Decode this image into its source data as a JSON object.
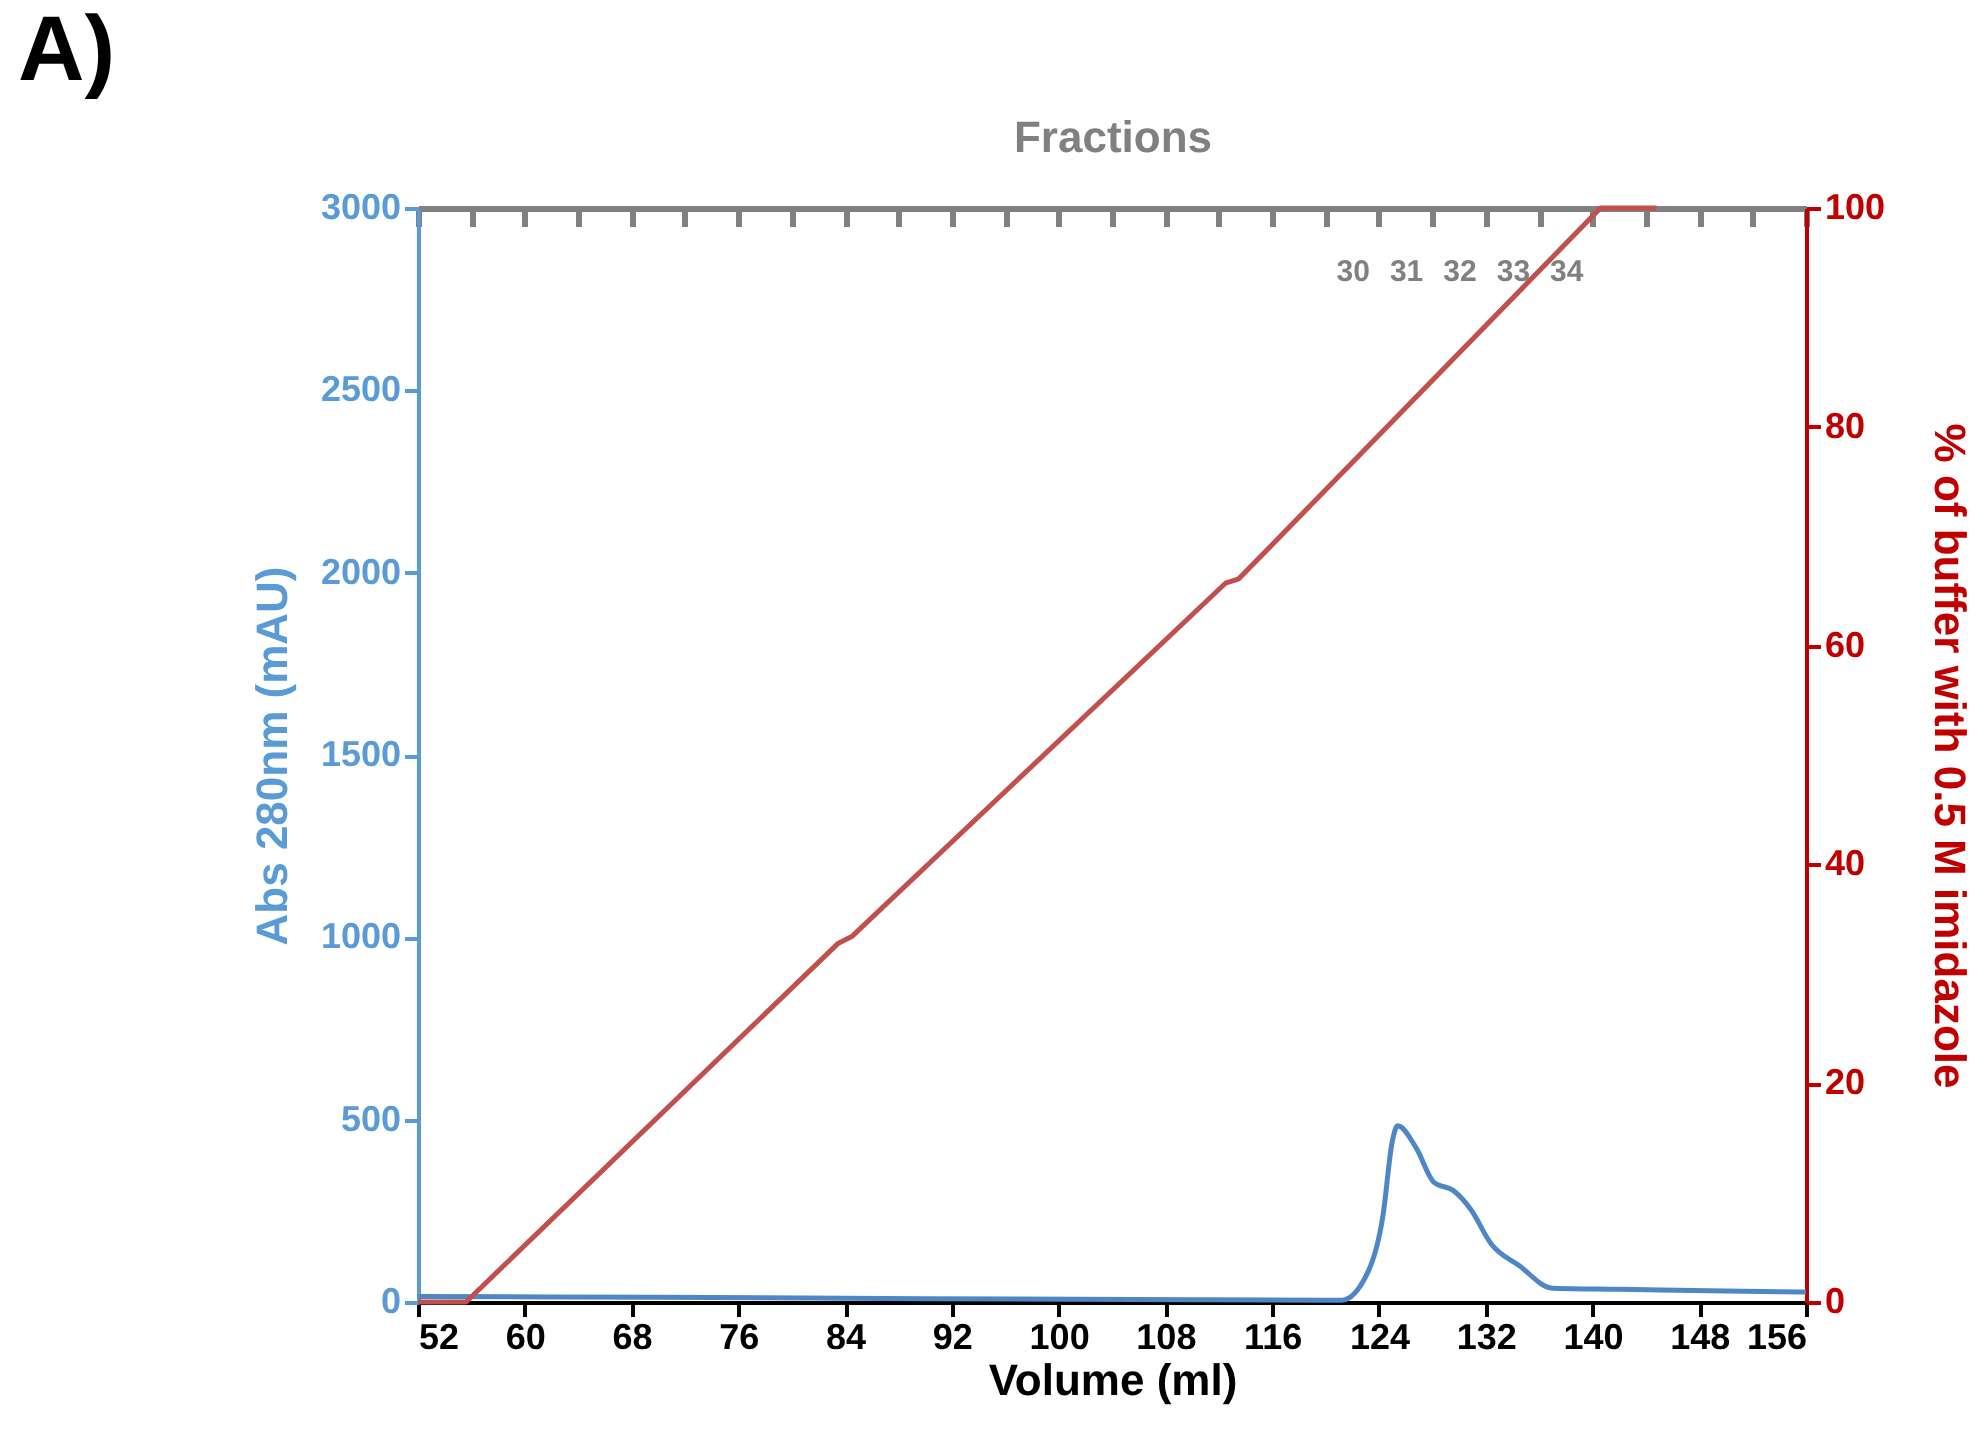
{
  "chart_data": {
    "type": "line",
    "annotations": [
      "A)"
    ],
    "xlabel": "Volume (ml)",
    "ylabel": "Abs 280nm (mAU)",
    "y2label": "% of buffer with 0.5 M imidazole",
    "x2label": "Fractions",
    "xlim": [
      52,
      156
    ],
    "xticks": [
      52,
      60,
      68,
      76,
      84,
      92,
      100,
      108,
      116,
      124,
      132,
      140,
      148,
      156
    ],
    "x2lim": [
      12.5,
      38.5
    ],
    "x2ticks": [
      {
        "value": 12.5,
        "label": null
      },
      {
        "value": 13.5,
        "label": null
      },
      {
        "value": 14.5,
        "label": null
      },
      {
        "value": 15.5,
        "label": null
      },
      {
        "value": 16.5,
        "label": null
      },
      {
        "value": 17.5,
        "label": null
      },
      {
        "value": 18.5,
        "label": null
      },
      {
        "value": 19.5,
        "label": null
      },
      {
        "value": 20.5,
        "label": null
      },
      {
        "value": 21.5,
        "label": null
      },
      {
        "value": 22.5,
        "label": null
      },
      {
        "value": 23.5,
        "label": null
      },
      {
        "value": 24.5,
        "label": null
      },
      {
        "value": 25.5,
        "label": null
      },
      {
        "value": 26.5,
        "label": null
      },
      {
        "value": 27.5,
        "label": null
      },
      {
        "value": 28.5,
        "label": null
      },
      {
        "value": 29.5,
        "label": null
      },
      {
        "value": 30.5,
        "label": null
      },
      {
        "value": 31.5,
        "label": null
      },
      {
        "value": 32.5,
        "label": null
      },
      {
        "value": 33.5,
        "label": null
      },
      {
        "value": 34.5,
        "label": null
      },
      {
        "value": 35.5,
        "label": null
      },
      {
        "value": 36.5,
        "label": null
      },
      {
        "value": 37.5,
        "label": null
      },
      {
        "value": 38.5,
        "label": null
      },
      30,
      31,
      32,
      33,
      34
    ],
    "ylim": [
      0,
      3000
    ],
    "yticks": [
      0,
      500,
      1000,
      1500,
      2000,
      2500,
      3000
    ],
    "y2lim": [
      0,
      100
    ],
    "y2ticks": [
      0,
      20,
      40,
      60,
      80,
      100
    ],
    "grid": false,
    "marker": "none",
    "line_style": "solid",
    "series": [
      {
        "color": "#4f86c6",
        "x": [
          52,
          70,
          90,
          110,
          120,
          121.2,
          123.2,
          124.3,
          125.0,
          125.4,
          126.8,
          128.1,
          129.6,
          130.9,
          132.4,
          134.5,
          137.0,
          142,
          150,
          156
        ],
        "values": [
          15,
          13,
          9,
          6,
          5,
          5,
          84,
          236,
          440,
          483,
          422,
          329,
          305,
          253,
          160,
          100,
          38,
          35,
          30,
          27
        ]
      },
      {
        "color": "#c0504d",
        "axis": "y2",
        "x": [
          52,
          55.6,
          83.5,
          84.5,
          112.5,
          113.5,
          140.6,
          144.8
        ],
        "values": [
          0,
          0,
          32.8,
          33.4,
          65.7,
          66.1,
          100,
          100
        ]
      }
    ]
  }
}
